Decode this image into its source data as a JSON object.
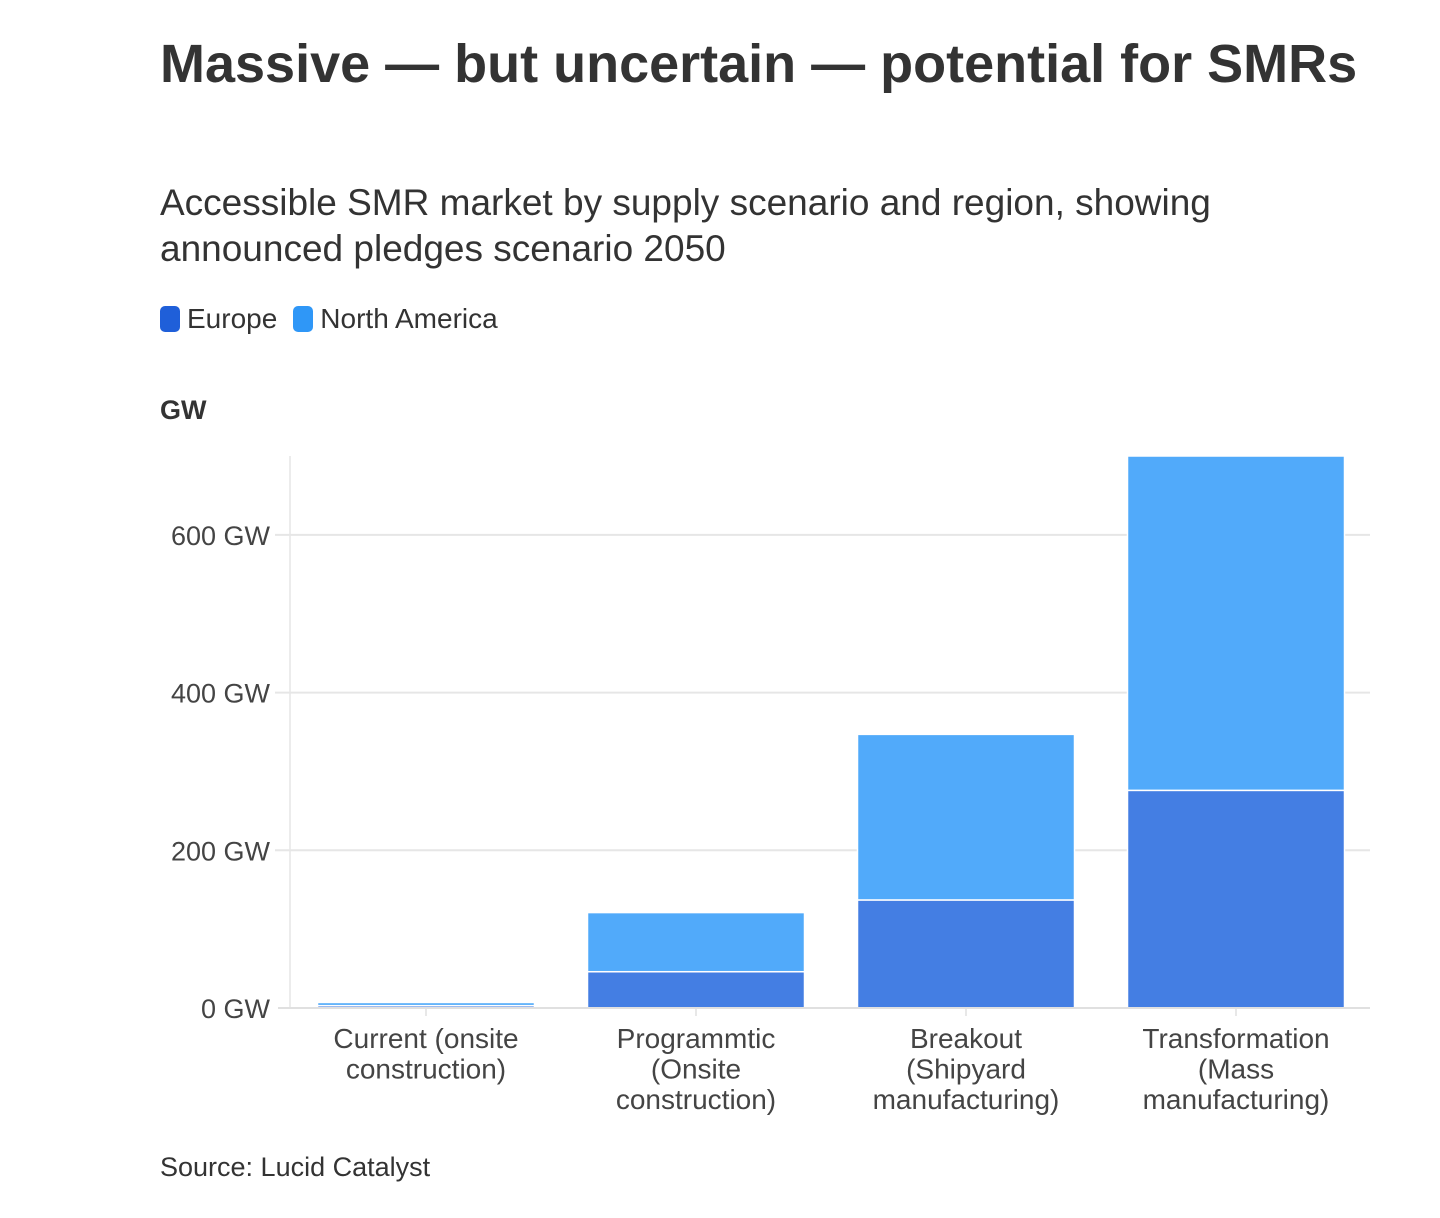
{
  "title": "Massive — but uncertain — potential for SMRs",
  "subtitle": "Accessible SMR market by supply scenario and region, showing announced pledges scenario 2050",
  "unit_label": "GW",
  "source": "Source: Lucid Catalyst",
  "colors": {
    "europe": "#447ee3",
    "north_america": "#51aafa",
    "legend_europe": "#1f5fd9",
    "legend_north_america": "#2f97f7"
  },
  "chart_data": {
    "type": "bar",
    "stacked": true,
    "categories": [
      [
        "Current (onsite",
        "construction)"
      ],
      [
        "Programmtic",
        "(Onsite",
        "construction)"
      ],
      [
        "Breakout",
        "(Shipyard",
        "manufacturing)"
      ],
      [
        "Transformation",
        "(Mass",
        "manufacturing)"
      ]
    ],
    "series": [
      {
        "name": "Europe",
        "values": [
          3,
          46,
          137,
          276
        ]
      },
      {
        "name": "North America",
        "values": [
          4,
          75,
          210,
          424
        ]
      }
    ],
    "ylim": [
      0,
      700
    ],
    "yticks": [
      0,
      200,
      400,
      600
    ],
    "ytick_labels": [
      "0 GW",
      "200 GW",
      "400 GW",
      "600 GW"
    ],
    "ylabel": "GW",
    "legend": "top-left",
    "grid": true
  }
}
